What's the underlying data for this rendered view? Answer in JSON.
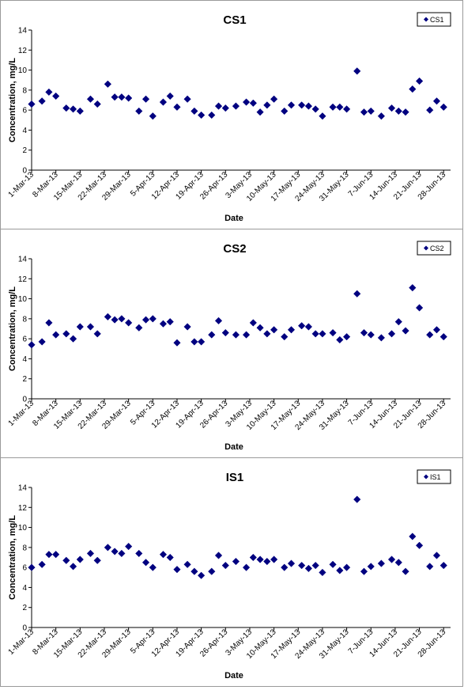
{
  "chart_data": [
    {
      "type": "scatter",
      "title": "CS1",
      "xlabel": "Date",
      "ylabel": "Concentration, mg/L",
      "ylim": [
        0,
        14
      ],
      "yticks": [
        0,
        2,
        4,
        6,
        8,
        10,
        12,
        14
      ],
      "xlim": [
        "2013-03-01",
        "2013-06-30"
      ],
      "xtick_labels": [
        "1-Mar-13",
        "8-Mar-13",
        "15-Mar-13",
        "22-Mar-13",
        "29-Mar-13",
        "5-Apr-13",
        "12-Apr-13",
        "19-Apr-13",
        "26-Apr-13",
        "3-May-13",
        "10-May-13",
        "17-May-13",
        "24-May-13",
        "31-May-13",
        "7-Jun-13",
        "14-Jun-13",
        "21-Jun-13",
        "28-Jun-13"
      ],
      "legend": "top-right",
      "marker_color": "#000080",
      "series": [
        {
          "name": "CS1",
          "points": [
            [
              "2013-03-01",
              6.6
            ],
            [
              "2013-03-04",
              6.9
            ],
            [
              "2013-03-06",
              7.8
            ],
            [
              "2013-03-08",
              7.4
            ],
            [
              "2013-03-11",
              6.2
            ],
            [
              "2013-03-13",
              6.1
            ],
            [
              "2013-03-15",
              5.9
            ],
            [
              "2013-03-18",
              7.1
            ],
            [
              "2013-03-20",
              6.6
            ],
            [
              "2013-03-23",
              8.6
            ],
            [
              "2013-03-25",
              7.3
            ],
            [
              "2013-03-27",
              7.3
            ],
            [
              "2013-03-29",
              7.2
            ],
            [
              "2013-04-01",
              5.9
            ],
            [
              "2013-04-03",
              7.1
            ],
            [
              "2013-04-05",
              5.4
            ],
            [
              "2013-04-08",
              6.8
            ],
            [
              "2013-04-10",
              7.4
            ],
            [
              "2013-04-12",
              6.3
            ],
            [
              "2013-04-15",
              7.1
            ],
            [
              "2013-04-17",
              5.9
            ],
            [
              "2013-04-19",
              5.5
            ],
            [
              "2013-04-22",
              5.5
            ],
            [
              "2013-04-24",
              6.4
            ],
            [
              "2013-04-26",
              6.2
            ],
            [
              "2013-04-29",
              6.4
            ],
            [
              "2013-05-02",
              6.8
            ],
            [
              "2013-05-04",
              6.7
            ],
            [
              "2013-05-06",
              5.8
            ],
            [
              "2013-05-08",
              6.5
            ],
            [
              "2013-05-10",
              7.1
            ],
            [
              "2013-05-13",
              5.9
            ],
            [
              "2013-05-15",
              6.5
            ],
            [
              "2013-05-18",
              6.5
            ],
            [
              "2013-05-20",
              6.4
            ],
            [
              "2013-05-22",
              6.1
            ],
            [
              "2013-05-24",
              5.4
            ],
            [
              "2013-05-27",
              6.3
            ],
            [
              "2013-05-29",
              6.3
            ],
            [
              "2013-05-31",
              6.1
            ],
            [
              "2013-06-03",
              9.9
            ],
            [
              "2013-06-05",
              5.8
            ],
            [
              "2013-06-07",
              5.9
            ],
            [
              "2013-06-10",
              5.4
            ],
            [
              "2013-06-13",
              6.2
            ],
            [
              "2013-06-15",
              5.9
            ],
            [
              "2013-06-17",
              5.8
            ],
            [
              "2013-06-19",
              8.1
            ],
            [
              "2013-06-21",
              8.9
            ],
            [
              "2013-06-24",
              6.0
            ],
            [
              "2013-06-26",
              6.9
            ],
            [
              "2013-06-28",
              6.3
            ]
          ]
        }
      ]
    },
    {
      "type": "scatter",
      "title": "CS2",
      "xlabel": "Date",
      "ylabel": "Concentration, mg/L",
      "ylim": [
        0,
        14
      ],
      "yticks": [
        0,
        2,
        4,
        6,
        8,
        10,
        12,
        14
      ],
      "xlim": [
        "2013-03-01",
        "2013-06-30"
      ],
      "xtick_labels": [
        "1-Mar-13",
        "8-Mar-13",
        "15-Mar-13",
        "22-Mar-13",
        "29-Mar-13",
        "5-Apr-13",
        "12-Apr-13",
        "19-Apr-13",
        "26-Apr-13",
        "3-May-13",
        "10-May-13",
        "17-May-13",
        "24-May-13",
        "31-May-13",
        "7-Jun-13",
        "14-Jun-13",
        "21-Jun-13",
        "28-Jun-13"
      ],
      "legend": "top-right",
      "marker_color": "#000080",
      "series": [
        {
          "name": "CS2",
          "points": [
            [
              "2013-03-01",
              5.4
            ],
            [
              "2013-03-04",
              5.7
            ],
            [
              "2013-03-06",
              7.6
            ],
            [
              "2013-03-08",
              6.4
            ],
            [
              "2013-03-11",
              6.5
            ],
            [
              "2013-03-13",
              6.0
            ],
            [
              "2013-03-15",
              7.2
            ],
            [
              "2013-03-18",
              7.2
            ],
            [
              "2013-03-20",
              6.5
            ],
            [
              "2013-03-23",
              8.2
            ],
            [
              "2013-03-25",
              7.9
            ],
            [
              "2013-03-27",
              8.0
            ],
            [
              "2013-03-29",
              7.6
            ],
            [
              "2013-04-01",
              7.1
            ],
            [
              "2013-04-03",
              7.9
            ],
            [
              "2013-04-05",
              8.0
            ],
            [
              "2013-04-08",
              7.5
            ],
            [
              "2013-04-10",
              7.7
            ],
            [
              "2013-04-12",
              5.6
            ],
            [
              "2013-04-15",
              7.2
            ],
            [
              "2013-04-17",
              5.7
            ],
            [
              "2013-04-19",
              5.7
            ],
            [
              "2013-04-22",
              6.4
            ],
            [
              "2013-04-24",
              7.8
            ],
            [
              "2013-04-26",
              6.6
            ],
            [
              "2013-04-29",
              6.4
            ],
            [
              "2013-05-02",
              6.4
            ],
            [
              "2013-05-04",
              7.6
            ],
            [
              "2013-05-06",
              7.1
            ],
            [
              "2013-05-08",
              6.5
            ],
            [
              "2013-05-10",
              6.9
            ],
            [
              "2013-05-13",
              6.2
            ],
            [
              "2013-05-15",
              6.9
            ],
            [
              "2013-05-18",
              7.3
            ],
            [
              "2013-05-20",
              7.2
            ],
            [
              "2013-05-22",
              6.5
            ],
            [
              "2013-05-24",
              6.5
            ],
            [
              "2013-05-27",
              6.6
            ],
            [
              "2013-05-29",
              5.9
            ],
            [
              "2013-05-31",
              6.2
            ],
            [
              "2013-06-03",
              10.5
            ],
            [
              "2013-06-05",
              6.6
            ],
            [
              "2013-06-07",
              6.4
            ],
            [
              "2013-06-10",
              6.1
            ],
            [
              "2013-06-13",
              6.5
            ],
            [
              "2013-06-15",
              7.7
            ],
            [
              "2013-06-17",
              6.8
            ],
            [
              "2013-06-19",
              11.1
            ],
            [
              "2013-06-21",
              9.1
            ],
            [
              "2013-06-24",
              6.4
            ],
            [
              "2013-06-26",
              6.9
            ],
            [
              "2013-06-28",
              6.2
            ]
          ]
        }
      ]
    },
    {
      "type": "scatter",
      "title": "IS1",
      "xlabel": "Date",
      "ylabel": "Concentration, mg/L",
      "ylim": [
        0,
        14
      ],
      "yticks": [
        0,
        2,
        4,
        6,
        8,
        10,
        12,
        14
      ],
      "xlim": [
        "2013-03-01",
        "2013-06-30"
      ],
      "xtick_labels": [
        "1-Mar-13",
        "8-Mar-13",
        "15-Mar-13",
        "22-Mar-13",
        "29-Mar-13",
        "5-Apr-13",
        "12-Apr-13",
        "19-Apr-13",
        "26-Apr-13",
        "3-May-13",
        "10-May-13",
        "17-May-13",
        "24-May-13",
        "31-May-13",
        "7-Jun-13",
        "14-Jun-13",
        "21-Jun-13",
        "28-Jun-13"
      ],
      "legend": "top-right",
      "marker_color": "#000080",
      "series": [
        {
          "name": "IS1",
          "points": [
            [
              "2013-03-01",
              6.0
            ],
            [
              "2013-03-04",
              6.3
            ],
            [
              "2013-03-06",
              7.3
            ],
            [
              "2013-03-08",
              7.3
            ],
            [
              "2013-03-11",
              6.7
            ],
            [
              "2013-03-13",
              6.1
            ],
            [
              "2013-03-15",
              6.8
            ],
            [
              "2013-03-18",
              7.4
            ],
            [
              "2013-03-20",
              6.7
            ],
            [
              "2013-03-23",
              8.0
            ],
            [
              "2013-03-25",
              7.6
            ],
            [
              "2013-03-27",
              7.4
            ],
            [
              "2013-03-29",
              8.1
            ],
            [
              "2013-04-01",
              7.4
            ],
            [
              "2013-04-03",
              6.5
            ],
            [
              "2013-04-05",
              6.0
            ],
            [
              "2013-04-08",
              7.3
            ],
            [
              "2013-04-10",
              7.0
            ],
            [
              "2013-04-12",
              5.8
            ],
            [
              "2013-04-15",
              6.3
            ],
            [
              "2013-04-17",
              5.6
            ],
            [
              "2013-04-19",
              5.2
            ],
            [
              "2013-04-22",
              5.6
            ],
            [
              "2013-04-24",
              7.2
            ],
            [
              "2013-04-26",
              6.2
            ],
            [
              "2013-04-29",
              6.6
            ],
            [
              "2013-05-02",
              6.0
            ],
            [
              "2013-05-04",
              7.0
            ],
            [
              "2013-05-06",
              6.8
            ],
            [
              "2013-05-08",
              6.6
            ],
            [
              "2013-05-10",
              6.8
            ],
            [
              "2013-05-13",
              6.0
            ],
            [
              "2013-05-15",
              6.4
            ],
            [
              "2013-05-18",
              6.2
            ],
            [
              "2013-05-20",
              5.9
            ],
            [
              "2013-05-22",
              6.2
            ],
            [
              "2013-05-24",
              5.5
            ],
            [
              "2013-05-27",
              6.3
            ],
            [
              "2013-05-29",
              5.7
            ],
            [
              "2013-05-31",
              6.0
            ],
            [
              "2013-06-03",
              12.8
            ],
            [
              "2013-06-05",
              5.6
            ],
            [
              "2013-06-07",
              6.1
            ],
            [
              "2013-06-10",
              6.4
            ],
            [
              "2013-06-13",
              6.8
            ],
            [
              "2013-06-15",
              6.5
            ],
            [
              "2013-06-17",
              5.6
            ],
            [
              "2013-06-19",
              9.1
            ],
            [
              "2013-06-21",
              8.2
            ],
            [
              "2013-06-24",
              6.1
            ],
            [
              "2013-06-26",
              7.2
            ],
            [
              "2013-06-28",
              6.2
            ]
          ]
        }
      ]
    }
  ]
}
